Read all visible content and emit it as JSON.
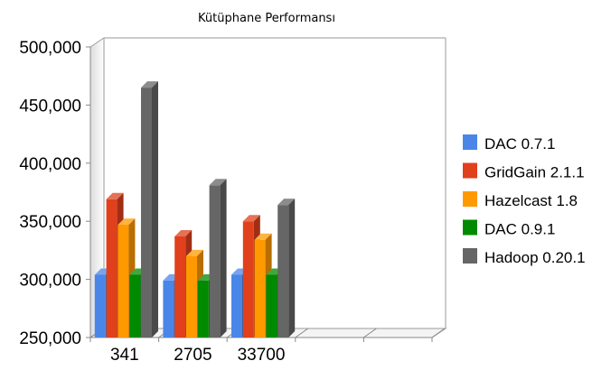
{
  "chart_data": {
    "type": "bar",
    "title": "Kütüphane Performansı",
    "categories": [
      "341",
      "2705",
      "33700"
    ],
    "series": [
      {
        "name": "DAC 0.7.1",
        "color": "#4A86E8",
        "values": [
          304000,
          299000,
          304000
        ]
      },
      {
        "name": "GridGain 2.1.1",
        "color": "#E0401C",
        "values": [
          369000,
          337000,
          350000
        ]
      },
      {
        "name": "Hazelcast 1.8",
        "color": "#FF9900",
        "values": [
          347000,
          320000,
          334000
        ]
      },
      {
        "name": "DAC 0.9.1",
        "color": "#008A00",
        "values": [
          304000,
          299000,
          304000
        ]
      },
      {
        "name": "Hadoop 0.20.1",
        "color": "#666666",
        "values": [
          465000,
          381000,
          364000
        ]
      }
    ],
    "ylim": [
      250000,
      500000
    ],
    "yticks": [
      "500,000",
      "450,000",
      "400,000",
      "350,000",
      "300,000",
      "250,000"
    ],
    "grid": false,
    "legend_position": "right",
    "style": "3d-clustered"
  }
}
